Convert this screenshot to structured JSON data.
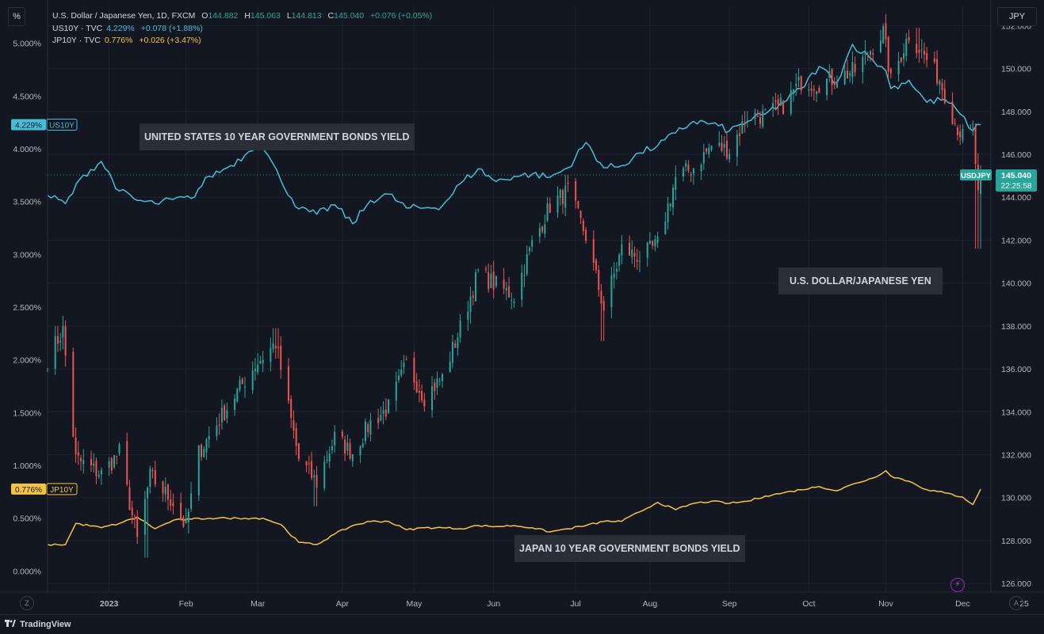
{
  "toolbar": {
    "left_unit": "%",
    "right_unit": "JPY"
  },
  "legend": {
    "main": {
      "name": "U.S. Dollar / Japanese Yen, 1D, FXCM",
      "o_label": "O",
      "o": "144.882",
      "h_label": "H",
      "h": "145.063",
      "l_label": "L",
      "l": "144.813",
      "c_label": "C",
      "c": "145.040",
      "change": "+0.076 (+0.05%)"
    },
    "us10y": {
      "name": "US10Y · TVC",
      "value": "4.229%",
      "change": "+0.078 (+1.88%)"
    },
    "jp10y": {
      "name": "JP10Y · TVC",
      "value": "0.776%",
      "change": "+0.026 (+3.47%)"
    }
  },
  "annotations": {
    "us": "UNITED STATES 10 YEAR GOVERNMENT BONDS YIELD",
    "usdjpy": "U.S. DOLLAR/JAPANESE YEN",
    "jp": "JAPAN 10 YEAR GOVERNMENT BONDS YIELD"
  },
  "badges": {
    "us10y_value": "4.229%",
    "us10y_label": "US10Y",
    "jp10y_value": "0.776%",
    "jp10y_label": "JP10Y",
    "usdjpy_label": "USDJPY",
    "usdjpy_value": "145.040",
    "usdjpy_countdown": "22:25:58"
  },
  "footer": {
    "brand": "TradingView",
    "zoom_left": "Z",
    "zoom_right": "A",
    "bolt": "⚡"
  },
  "colors": {
    "background": "#131722",
    "grid": "#1e222d",
    "us10y": "#46bcd7",
    "jp10y": "#f6c343",
    "up": "#26a69a",
    "down": "#ef5350",
    "axis_text": "#b2b5be"
  },
  "chart_data": {
    "type": "candlestick+line",
    "x_axis": {
      "ticks": [
        "2023",
        "Feb",
        "Mar",
        "Apr",
        "May",
        "Jun",
        "Jul",
        "Aug",
        "Sep",
        "Oct",
        "Nov",
        "Dec",
        "25"
      ],
      "range": [
        "2022-12-09",
        "2023-12-12"
      ]
    },
    "left_axis": {
      "unit": "%",
      "ticks": [
        "0.000%",
        "0.500%",
        "1.000%",
        "1.500%",
        "2.000%",
        "2.500%",
        "3.000%",
        "3.500%",
        "4.000%",
        "4.500%",
        "5.000%"
      ],
      "range": [
        -0.2,
        5.35
      ]
    },
    "right_axis": {
      "unit": "JPY",
      "ticks": [
        "126.000",
        "128.000",
        "130.000",
        "132.000",
        "134.000",
        "136.000",
        "138.000",
        "140.000",
        "142.000",
        "144.000",
        "146.000",
        "148.000",
        "150.000",
        "152.000"
      ],
      "range": [
        125.6,
        152.9
      ]
    },
    "series": [
      {
        "name": "US10Y · TVC",
        "axis": "left",
        "kind": "line",
        "last": 4.229,
        "points": [
          [
            "2022-12-09",
            3.56
          ],
          [
            "2022-12-16",
            3.48
          ],
          [
            "2022-12-23",
            3.75
          ],
          [
            "2022-12-30",
            3.88
          ],
          [
            "2023-01-06",
            3.6
          ],
          [
            "2023-01-13",
            3.51
          ],
          [
            "2023-01-20",
            3.48
          ],
          [
            "2023-01-27",
            3.52
          ],
          [
            "2023-02-03",
            3.53
          ],
          [
            "2023-02-10",
            3.74
          ],
          [
            "2023-02-17",
            3.82
          ],
          [
            "2023-02-24",
            3.94
          ],
          [
            "2023-03-02",
            4.08
          ],
          [
            "2023-03-10",
            3.7
          ],
          [
            "2023-03-17",
            3.43
          ],
          [
            "2023-03-24",
            3.38
          ],
          [
            "2023-03-31",
            3.47
          ],
          [
            "2023-04-07",
            3.29
          ],
          [
            "2023-04-14",
            3.51
          ],
          [
            "2023-04-21",
            3.57
          ],
          [
            "2023-04-28",
            3.44
          ],
          [
            "2023-05-05",
            3.44
          ],
          [
            "2023-05-12",
            3.46
          ],
          [
            "2023-05-19",
            3.67
          ],
          [
            "2023-05-26",
            3.81
          ],
          [
            "2023-06-02",
            3.69
          ],
          [
            "2023-06-09",
            3.74
          ],
          [
            "2023-06-16",
            3.76
          ],
          [
            "2023-06-23",
            3.73
          ],
          [
            "2023-06-30",
            3.82
          ],
          [
            "2023-07-07",
            4.06
          ],
          [
            "2023-07-14",
            3.82
          ],
          [
            "2023-07-21",
            3.84
          ],
          [
            "2023-07-28",
            3.96
          ],
          [
            "2023-08-04",
            4.03
          ],
          [
            "2023-08-11",
            4.15
          ],
          [
            "2023-08-18",
            4.26
          ],
          [
            "2023-08-25",
            4.24
          ],
          [
            "2023-09-01",
            4.17
          ],
          [
            "2023-09-08",
            4.26
          ],
          [
            "2023-09-15",
            4.33
          ],
          [
            "2023-09-22",
            4.44
          ],
          [
            "2023-09-29",
            4.57
          ],
          [
            "2023-10-06",
            4.78
          ],
          [
            "2023-10-13",
            4.63
          ],
          [
            "2023-10-19",
            4.99
          ],
          [
            "2023-10-27",
            4.84
          ],
          [
            "2023-11-01",
            4.74
          ],
          [
            "2023-11-03",
            4.57
          ],
          [
            "2023-11-10",
            4.65
          ],
          [
            "2023-11-17",
            4.44
          ],
          [
            "2023-11-24",
            4.47
          ],
          [
            "2023-11-30",
            4.33
          ],
          [
            "2023-12-05",
            4.17
          ],
          [
            "2023-12-08",
            4.229
          ]
        ]
      },
      {
        "name": "JP10Y · TVC",
        "axis": "left",
        "kind": "line",
        "last": 0.776,
        "points": [
          [
            "2022-12-09",
            0.25
          ],
          [
            "2022-12-16",
            0.25
          ],
          [
            "2022-12-20",
            0.45
          ],
          [
            "2022-12-30",
            0.41
          ],
          [
            "2023-01-06",
            0.45
          ],
          [
            "2023-01-13",
            0.51
          ],
          [
            "2023-01-20",
            0.4
          ],
          [
            "2023-01-27",
            0.48
          ],
          [
            "2023-02-03",
            0.49
          ],
          [
            "2023-02-10",
            0.5
          ],
          [
            "2023-02-17",
            0.5
          ],
          [
            "2023-02-24",
            0.5
          ],
          [
            "2023-03-03",
            0.5
          ],
          [
            "2023-03-10",
            0.44
          ],
          [
            "2023-03-17",
            0.27
          ],
          [
            "2023-03-24",
            0.25
          ],
          [
            "2023-03-31",
            0.35
          ],
          [
            "2023-04-07",
            0.43
          ],
          [
            "2023-04-14",
            0.47
          ],
          [
            "2023-04-21",
            0.47
          ],
          [
            "2023-04-28",
            0.39
          ],
          [
            "2023-05-05",
            0.41
          ],
          [
            "2023-05-12",
            0.41
          ],
          [
            "2023-05-19",
            0.4
          ],
          [
            "2023-05-26",
            0.43
          ],
          [
            "2023-06-02",
            0.42
          ],
          [
            "2023-06-09",
            0.43
          ],
          [
            "2023-06-16",
            0.41
          ],
          [
            "2023-06-23",
            0.37
          ],
          [
            "2023-06-30",
            0.4
          ],
          [
            "2023-07-07",
            0.43
          ],
          [
            "2023-07-14",
            0.47
          ],
          [
            "2023-07-21",
            0.47
          ],
          [
            "2023-07-28",
            0.56
          ],
          [
            "2023-08-04",
            0.65
          ],
          [
            "2023-08-11",
            0.58
          ],
          [
            "2023-08-18",
            0.64
          ],
          [
            "2023-08-25",
            0.66
          ],
          [
            "2023-09-01",
            0.64
          ],
          [
            "2023-09-08",
            0.66
          ],
          [
            "2023-09-15",
            0.71
          ],
          [
            "2023-09-22",
            0.74
          ],
          [
            "2023-09-29",
            0.77
          ],
          [
            "2023-10-06",
            0.8
          ],
          [
            "2023-10-13",
            0.76
          ],
          [
            "2023-10-20",
            0.83
          ],
          [
            "2023-10-27",
            0.88
          ],
          [
            "2023-11-01",
            0.95
          ],
          [
            "2023-11-03",
            0.9
          ],
          [
            "2023-11-10",
            0.85
          ],
          [
            "2023-11-17",
            0.77
          ],
          [
            "2023-11-24",
            0.74
          ],
          [
            "2023-12-01",
            0.7
          ],
          [
            "2023-12-05",
            0.63
          ],
          [
            "2023-12-08",
            0.776
          ]
        ]
      },
      {
        "name": "U.S. Dollar / Japanese Yen, 1D, FXCM",
        "axis": "right",
        "kind": "candlestick",
        "last": 145.04,
        "close_path": [
          [
            "2022-12-09",
            136.5
          ],
          [
            "2022-12-15",
            137.8
          ],
          [
            "2022-12-20",
            131.8
          ],
          [
            "2022-12-30",
            131.1
          ],
          [
            "2023-01-06",
            132.1
          ],
          [
            "2023-01-13",
            128.0
          ],
          [
            "2023-01-18",
            131.0
          ],
          [
            "2023-01-27",
            129.8
          ],
          [
            "2023-02-01",
            128.6
          ],
          [
            "2023-02-06",
            132.1
          ],
          [
            "2023-02-17",
            134.2
          ],
          [
            "2023-02-28",
            136.2
          ],
          [
            "2023-03-08",
            137.2
          ],
          [
            "2023-03-17",
            131.8
          ],
          [
            "2023-03-24",
            130.7
          ],
          [
            "2023-03-31",
            132.8
          ],
          [
            "2023-04-07",
            132.1
          ],
          [
            "2023-04-14",
            133.5
          ],
          [
            "2023-04-21",
            134.2
          ],
          [
            "2023-04-28",
            136.2
          ],
          [
            "2023-05-05",
            134.7
          ],
          [
            "2023-05-12",
            135.6
          ],
          [
            "2023-05-19",
            137.9
          ],
          [
            "2023-05-26",
            140.5
          ],
          [
            "2023-06-02",
            139.9
          ],
          [
            "2023-06-09",
            139.4
          ],
          [
            "2023-06-16",
            141.8
          ],
          [
            "2023-06-23",
            143.6
          ],
          [
            "2023-06-30",
            144.3
          ],
          [
            "2023-07-07",
            142.2
          ],
          [
            "2023-07-14",
            138.8
          ],
          [
            "2023-07-21",
            141.6
          ],
          [
            "2023-07-28",
            141.2
          ],
          [
            "2023-08-04",
            141.8
          ],
          [
            "2023-08-11",
            144.9
          ],
          [
            "2023-08-18",
            145.4
          ],
          [
            "2023-08-25",
            146.4
          ],
          [
            "2023-09-01",
            146.2
          ],
          [
            "2023-09-08",
            147.8
          ],
          [
            "2023-09-15",
            147.8
          ],
          [
            "2023-09-22",
            148.3
          ],
          [
            "2023-09-29",
            149.4
          ],
          [
            "2023-10-06",
            149.3
          ],
          [
            "2023-10-13",
            149.6
          ],
          [
            "2023-10-20",
            149.9
          ],
          [
            "2023-10-31",
            151.7
          ],
          [
            "2023-11-03",
            149.4
          ],
          [
            "2023-11-10",
            151.6
          ],
          [
            "2023-11-16",
            150.6
          ],
          [
            "2023-11-22",
            149.5
          ],
          [
            "2023-11-28",
            147.5
          ],
          [
            "2023-12-01",
            146.8
          ],
          [
            "2023-12-05",
            147.2
          ],
          [
            "2023-12-07",
            144.0
          ],
          [
            "2023-12-08",
            145.04
          ]
        ],
        "extreme_wicks": [
          [
            "2022-12-12",
            138.0,
            "high"
          ],
          [
            "2023-01-16",
            127.2,
            "low"
          ],
          [
            "2023-03-08",
            137.9,
            "high"
          ],
          [
            "2023-03-24",
            129.6,
            "low"
          ],
          [
            "2023-07-14",
            137.3,
            "low"
          ],
          [
            "2023-10-31",
            151.8,
            "high"
          ],
          [
            "2023-11-13",
            151.9,
            "high"
          ],
          [
            "2023-12-07",
            141.6,
            "low"
          ]
        ]
      }
    ]
  }
}
